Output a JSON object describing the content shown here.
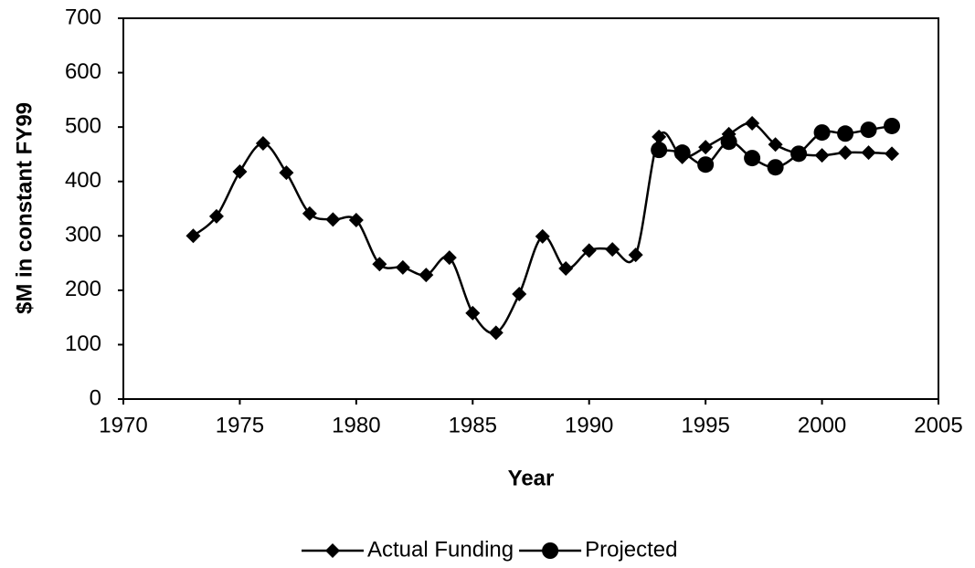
{
  "chart_data": {
    "type": "line",
    "x_label": "Year",
    "y_label": "$M in constant FY99",
    "xlim": [
      1970,
      2005
    ],
    "xticks": [
      1970,
      1975,
      1980,
      1985,
      1990,
      1995,
      2000,
      2005
    ],
    "ylim": [
      0,
      700
    ],
    "yticks": [
      0,
      100,
      200,
      300,
      400,
      500,
      600,
      700
    ],
    "grid": false,
    "legend": "bottom",
    "series": [
      {
        "name": "Actual Funding",
        "color": "#000000",
        "marker": "diamond",
        "x": [
          1973,
          1974,
          1975,
          1976,
          1977,
          1978,
          1979,
          1980,
          1981,
          1982,
          1983,
          1984,
          1985,
          1986,
          1987,
          1988,
          1989,
          1990,
          1991,
          1992,
          1993,
          1994,
          1995,
          1996,
          1997,
          1998,
          1999,
          2000,
          2001,
          2002,
          2003
        ],
        "values": [
          300,
          336,
          418,
          470,
          416,
          341,
          330,
          329,
          248,
          242,
          228,
          260,
          158,
          122,
          193,
          299,
          240,
          273,
          275,
          265,
          482,
          445,
          463,
          487,
          507,
          468,
          451,
          448,
          453,
          453,
          451
        ]
      },
      {
        "name": "Projected",
        "color": "#000000",
        "marker": "circle",
        "x": [
          1993,
          1994,
          1995,
          1996,
          1997,
          1998,
          1999,
          2000,
          2001,
          2002,
          2003
        ],
        "values": [
          458,
          453,
          431,
          473,
          443,
          426,
          451,
          490,
          488,
          495,
          502
        ]
      }
    ]
  }
}
